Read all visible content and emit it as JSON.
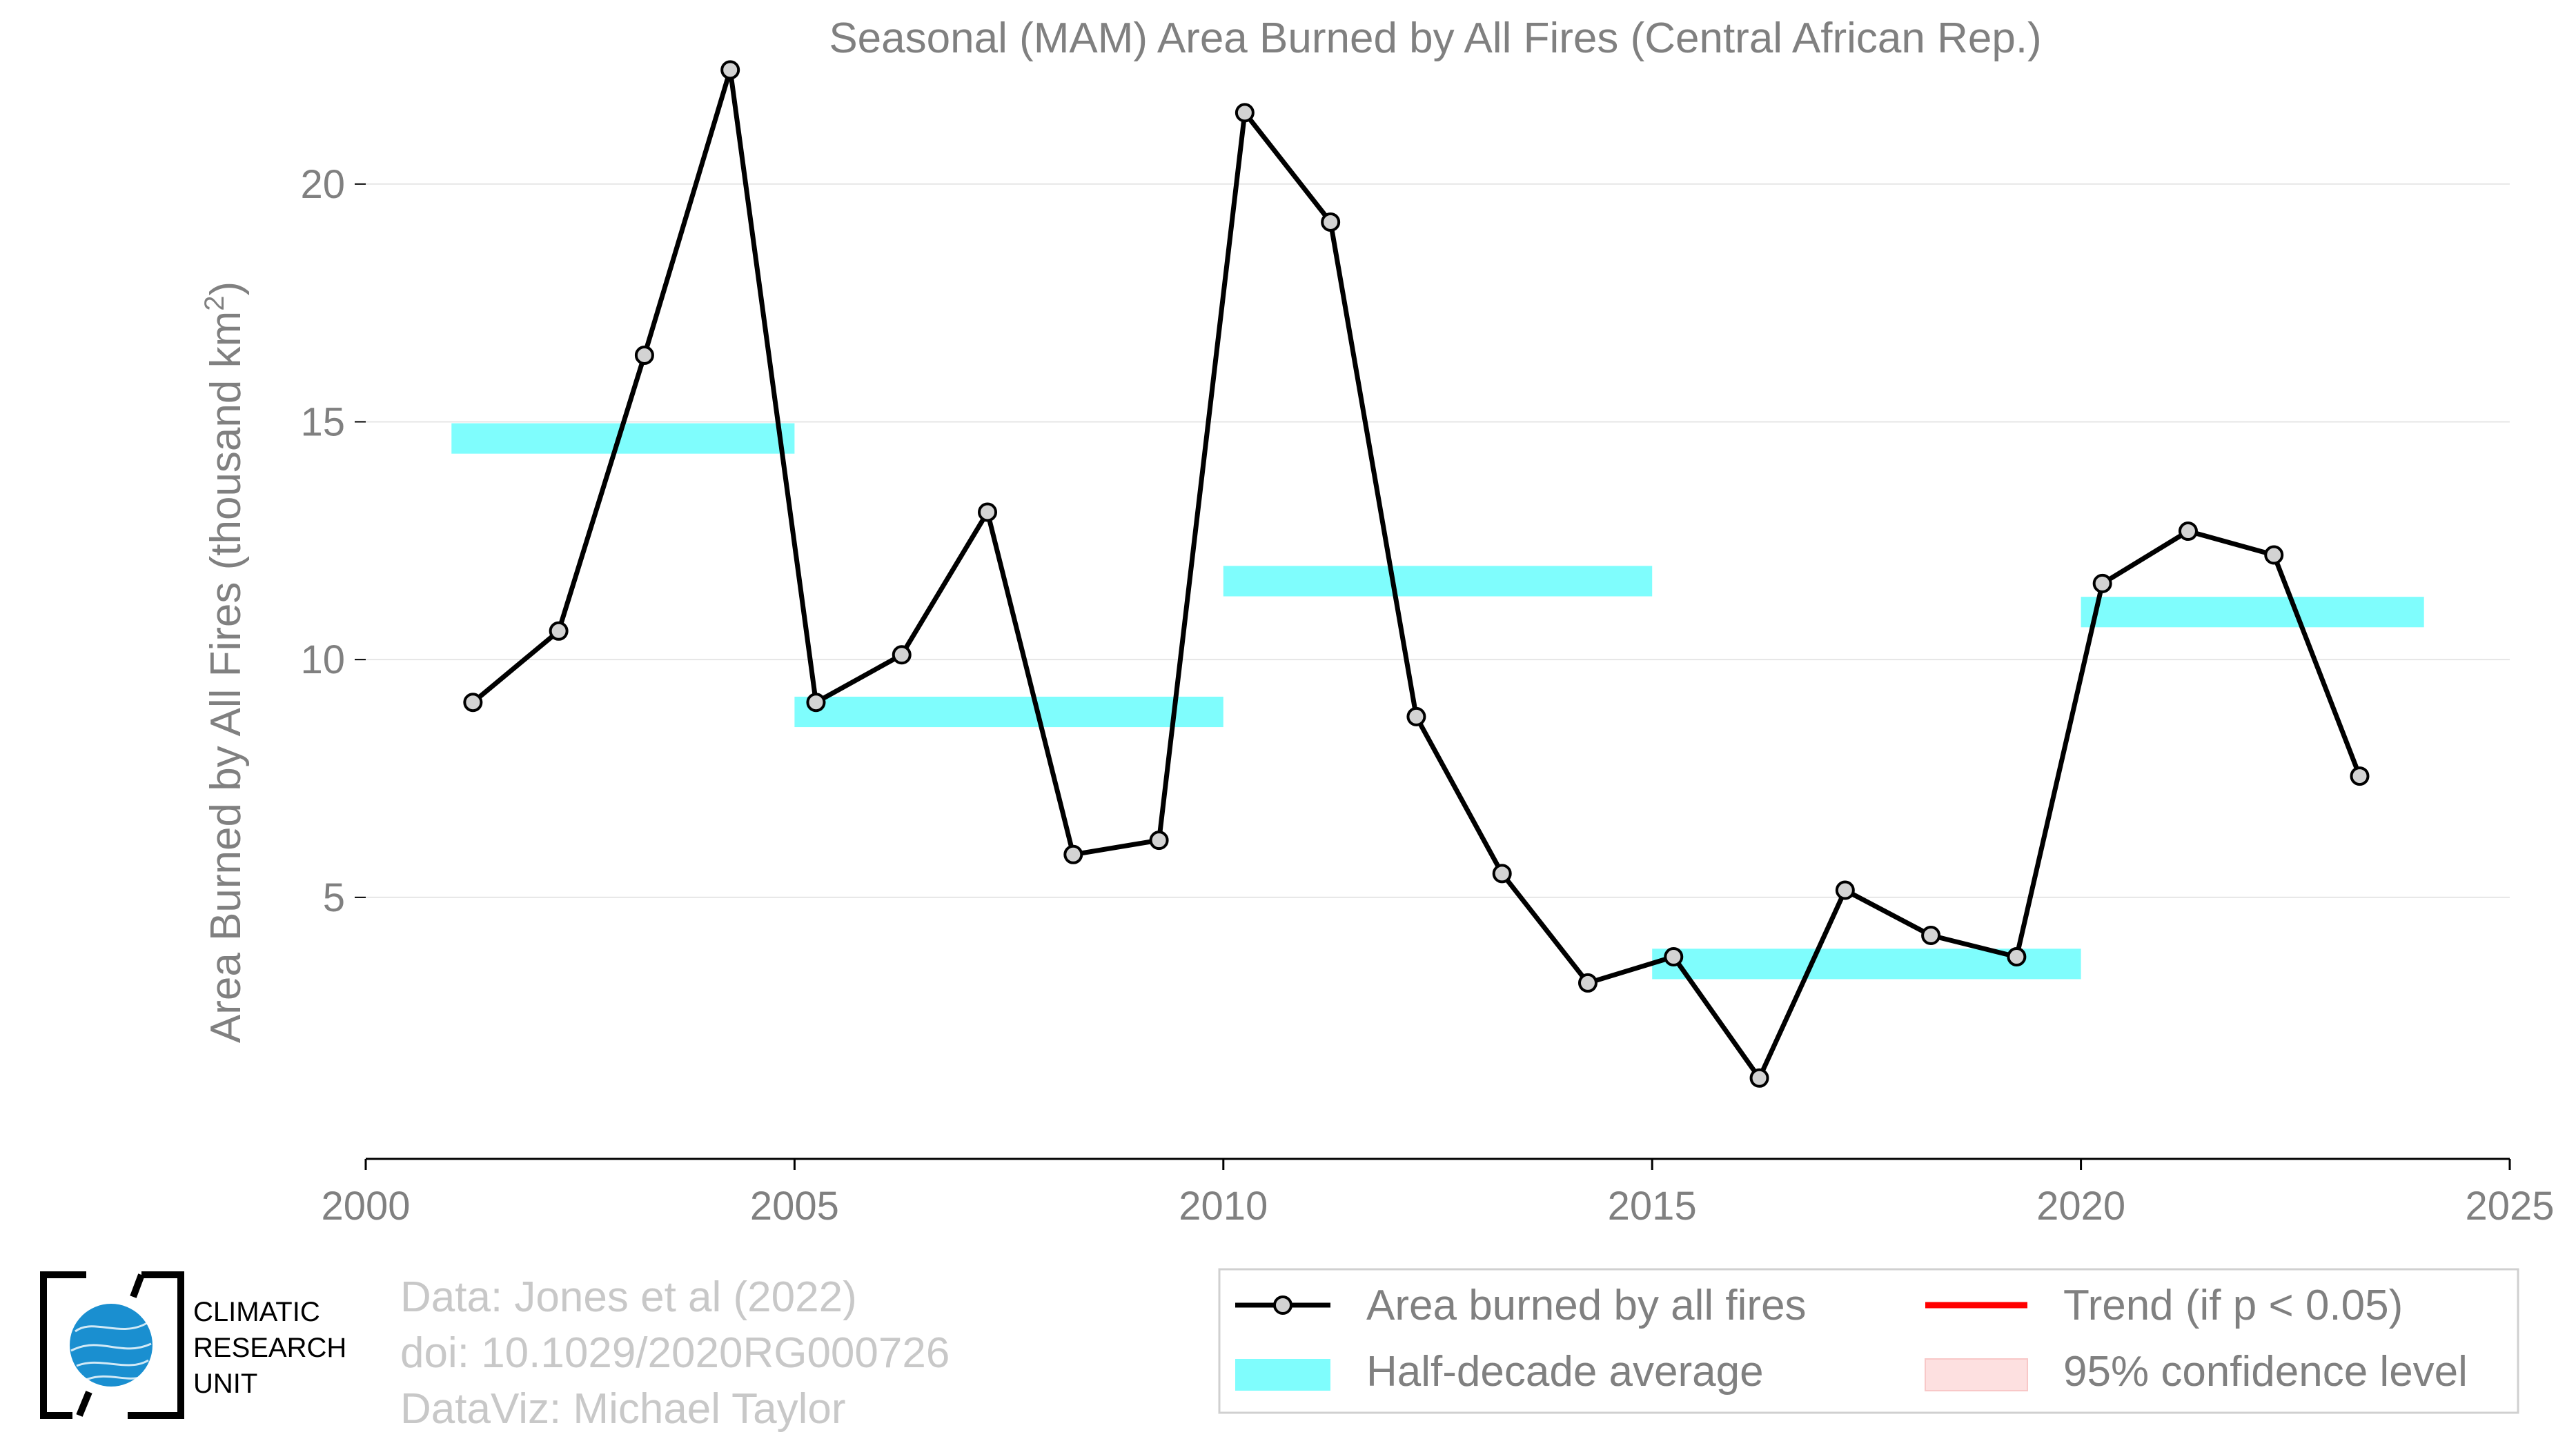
{
  "chart_data": {
    "type": "line",
    "title": "Seasonal (MAM) Area Burned by All Fires (Central African Rep.)",
    "xlabel": "",
    "ylabel": "Area Burned by All Fires (thousand km²)",
    "ylabel_main": "Area Burned by All Fires (thousand km",
    "ylabel_sup": "2",
    "ylabel_close": ")",
    "xlim": [
      2000,
      2025
    ],
    "ylim": [
      -0.5,
      23
    ],
    "x_ticks": [
      2000,
      2005,
      2010,
      2015,
      2020,
      2025
    ],
    "y_ticks": [
      5,
      10,
      15,
      20
    ],
    "grid": "horizontal",
    "series": [
      {
        "name": "Area burned by all fires",
        "color": "#000000",
        "marker_fill": "#d3d3d3",
        "x": [
          2001.25,
          2002.25,
          2003.25,
          2004.25,
          2005.25,
          2006.25,
          2007.25,
          2008.25,
          2009.25,
          2010.25,
          2011.25,
          2012.25,
          2013.25,
          2014.25,
          2015.25,
          2016.25,
          2017.25,
          2018.25,
          2019.25,
          2020.25,
          2021.25,
          2022.25,
          2023.25
        ],
        "values": [
          9.1,
          10.6,
          16.4,
          22.4,
          9.1,
          10.1,
          13.1,
          5.9,
          6.2,
          21.5,
          19.2,
          8.8,
          5.5,
          3.2,
          3.75,
          1.2,
          5.15,
          4.2,
          3.75,
          11.6,
          12.7,
          12.2,
          7.55
        ]
      }
    ],
    "half_decade_average": {
      "name": "Half-decade average",
      "color": "#7ffdfd",
      "segments": [
        {
          "x0": 2001,
          "x1": 2005,
          "value": 14.65
        },
        {
          "x0": 2005,
          "x1": 2010,
          "value": 8.9
        },
        {
          "x0": 2010,
          "x1": 2015,
          "value": 11.65
        },
        {
          "x0": 2015,
          "x1": 2020,
          "value": 3.6
        },
        {
          "x0": 2020,
          "x1": 2024,
          "value": 11.0
        }
      ]
    },
    "legend": {
      "position": "bottom-right",
      "entries": [
        {
          "label": "Area burned by all fires",
          "kind": "line-marker",
          "color": "#000000"
        },
        {
          "label": "Trend (if p < 0.05)",
          "kind": "line",
          "color": "#ff0000"
        },
        {
          "label": "Half-decade average",
          "kind": "patch",
          "color": "#7ffdfd"
        },
        {
          "label": "95% confidence level",
          "kind": "patch",
          "color": "#fde0e0"
        }
      ]
    }
  },
  "credits": {
    "line1": "Data: Jones et al (2022)",
    "line2": "doi: 10.1029/2020RG000726",
    "line3": "DataViz: Michael Taylor"
  },
  "logo": {
    "line1": "CLIMATIC",
    "line2": "RESEARCH",
    "line3": "UNIT",
    "globe_color": "#1a8fd0"
  }
}
